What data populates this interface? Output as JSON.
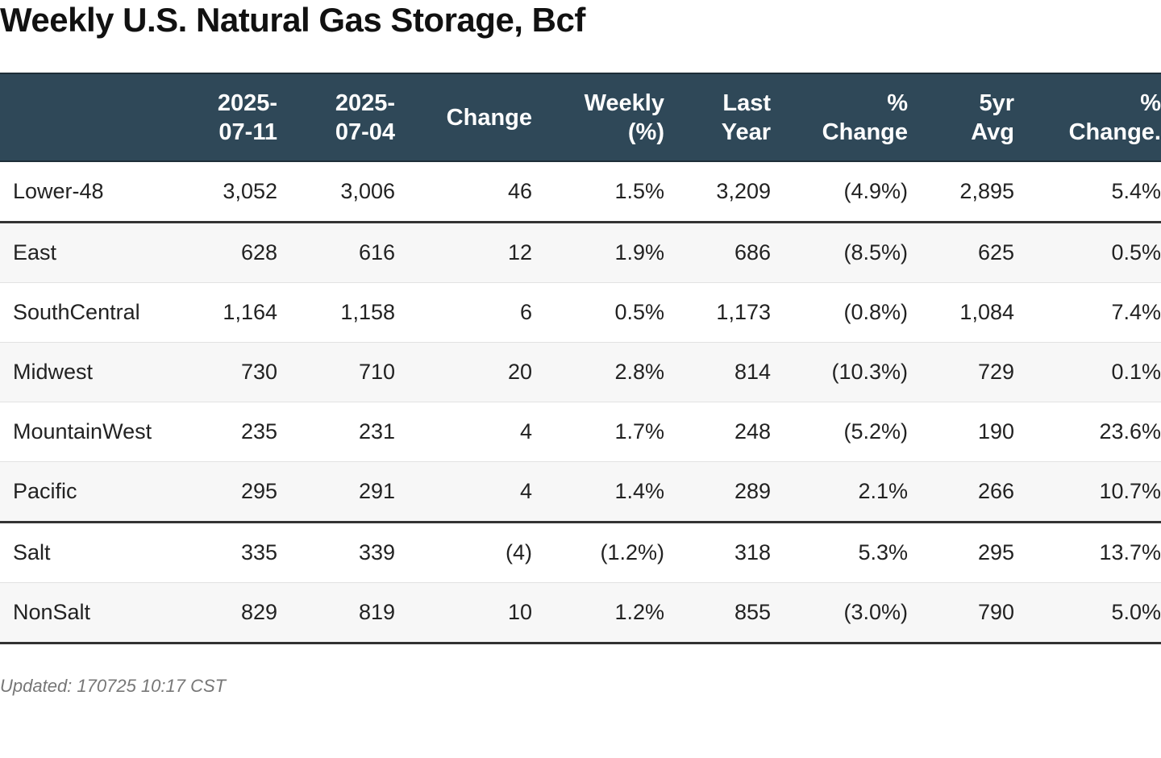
{
  "title": "Weekly U.S. Natural Gas Storage, Bcf",
  "chart_data": {
    "type": "table",
    "title": "Weekly U.S. Natural Gas Storage, Bcf",
    "columns": [
      {
        "key": "region",
        "label": ""
      },
      {
        "key": "current",
        "label": "2025-07-11",
        "lines": [
          "2025-",
          "07-11"
        ]
      },
      {
        "key": "prior",
        "label": "2025-07-04",
        "lines": [
          "2025-",
          "07-04"
        ]
      },
      {
        "key": "change",
        "label": "Change",
        "lines": [
          "Change"
        ]
      },
      {
        "key": "weekly_pct",
        "label": "Weekly (%)",
        "lines": [
          "Weekly",
          "(%)"
        ]
      },
      {
        "key": "last_year",
        "label": "Last Year",
        "lines": [
          "Last",
          "Year"
        ]
      },
      {
        "key": "pct_change_yoy",
        "label": "% Change",
        "lines": [
          "%",
          "Change"
        ]
      },
      {
        "key": "five_yr_avg",
        "label": "5yr Avg",
        "lines": [
          "5yr",
          "Avg"
        ]
      },
      {
        "key": "pct_change_5yr",
        "label": "% Change.",
        "lines": [
          "%",
          "Change."
        ]
      }
    ],
    "rows": [
      {
        "region": "Lower-48",
        "current": "3,052",
        "prior": "3,006",
        "change": "46",
        "weekly_pct": "1.5%",
        "last_year": "3,209",
        "pct_change_yoy": "(4.9%)",
        "five_yr_avg": "2,895",
        "pct_change_5yr": "5.4%"
      },
      {
        "region": "East",
        "current": "628",
        "prior": "616",
        "change": "12",
        "weekly_pct": "1.9%",
        "last_year": "686",
        "pct_change_yoy": "(8.5%)",
        "five_yr_avg": "625",
        "pct_change_5yr": "0.5%"
      },
      {
        "region": "SouthCentral",
        "current": "1,164",
        "prior": "1,158",
        "change": "6",
        "weekly_pct": "0.5%",
        "last_year": "1,173",
        "pct_change_yoy": "(0.8%)",
        "five_yr_avg": "1,084",
        "pct_change_5yr": "7.4%"
      },
      {
        "region": "Midwest",
        "current": "730",
        "prior": "710",
        "change": "20",
        "weekly_pct": "2.8%",
        "last_year": "814",
        "pct_change_yoy": "(10.3%)",
        "five_yr_avg": "729",
        "pct_change_5yr": "0.1%"
      },
      {
        "region": "MountainWest",
        "current": "235",
        "prior": "231",
        "change": "4",
        "weekly_pct": "1.7%",
        "last_year": "248",
        "pct_change_yoy": "(5.2%)",
        "five_yr_avg": "190",
        "pct_change_5yr": "23.6%"
      },
      {
        "region": "Pacific",
        "current": "295",
        "prior": "291",
        "change": "4",
        "weekly_pct": "1.4%",
        "last_year": "289",
        "pct_change_yoy": "2.1%",
        "five_yr_avg": "266",
        "pct_change_5yr": "10.7%"
      },
      {
        "region": "Salt",
        "current": "335",
        "prior": "339",
        "change": "(4)",
        "weekly_pct": "(1.2%)",
        "last_year": "318",
        "pct_change_yoy": "5.3%",
        "five_yr_avg": "295",
        "pct_change_5yr": "13.7%"
      },
      {
        "region": "NonSalt",
        "current": "829",
        "prior": "819",
        "change": "10",
        "weekly_pct": "1.2%",
        "last_year": "855",
        "pct_change_yoy": "(3.0%)",
        "five_yr_avg": "790",
        "pct_change_5yr": "5.0%"
      }
    ],
    "group_breaks_after": [
      "Lower-48",
      "Pacific",
      "NonSalt"
    ],
    "colors": {
      "header_bg": "#2f4858",
      "header_text": "#ffffff",
      "row_alt_bg": "#f7f7f7",
      "group_rule": "#333333"
    }
  },
  "footnote": "Updated: 170725 10:17 CST"
}
